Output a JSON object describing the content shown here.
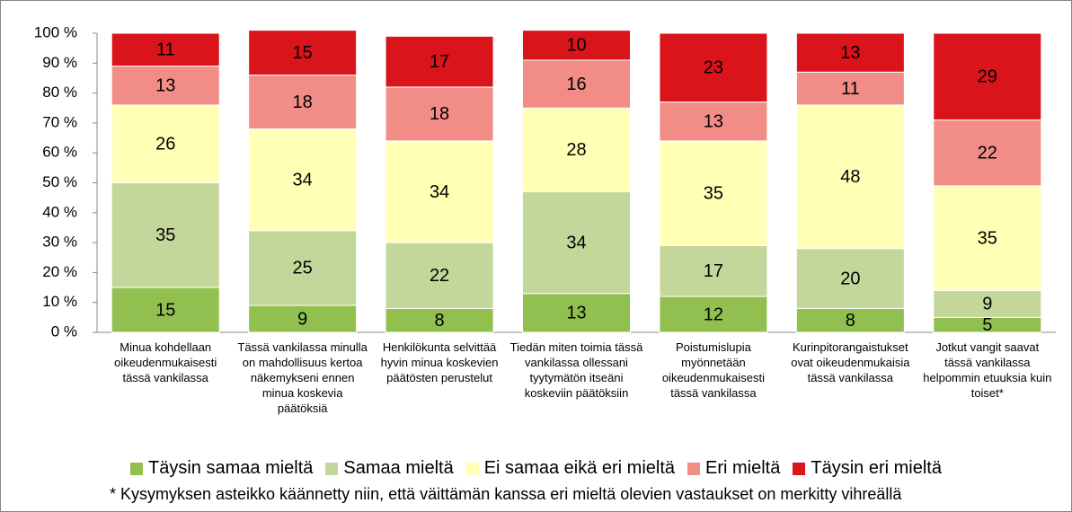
{
  "chart_data": {
    "type": "stacked_bar",
    "categories": [
      "Minua kohdellaan oikeudenmukaisesti tässä vankilassa",
      "Tässä vankilassa minulla on mahdollisuus kertoa näkemykseni ennen minua koskevia päätöksiä",
      "Henkilökunta selvittää hyvin minua koskevien päätösten perustelut",
      "Tiedän miten toimia tässä vankilassa ollessani tyytymätön itseäni koskeviin päätöksiin",
      "Poistumislupia myönnetään oikeudenmukaisesti tässä vankilassa",
      "Kurinpitorangaistukset ovat oikeudenmukaisia tässä vankilassa",
      "Jotkut vangit saavat tässä vankilassa helpommin etuuksia kuin toiset*"
    ],
    "series": [
      {
        "name": "Täysin samaa mieltä",
        "color": "#92c050",
        "values": [
          15,
          9,
          8,
          13,
          12,
          8,
          5
        ]
      },
      {
        "name": "Samaa mieltä",
        "color": "#c4d79b",
        "values": [
          35,
          25,
          22,
          34,
          17,
          20,
          9
        ]
      },
      {
        "name": "Ei samaa eikä eri mieltä",
        "color": "#ffffb5",
        "values": [
          26,
          34,
          34,
          28,
          35,
          48,
          35
        ]
      },
      {
        "name": "Eri mieltä",
        "color": "#f28c87",
        "values": [
          13,
          18,
          18,
          16,
          13,
          11,
          22
        ]
      },
      {
        "name": "Täysin eri mieltä",
        "color": "#d9141b",
        "values": [
          11,
          15,
          17,
          10,
          23,
          13,
          29
        ]
      }
    ],
    "ylim": [
      0,
      100
    ],
    "yticks": [
      {
        "value": 0,
        "label": "0 %"
      },
      {
        "value": 10,
        "label": "10 %"
      },
      {
        "value": 20,
        "label": "20 %"
      },
      {
        "value": 30,
        "label": "30 %"
      },
      {
        "value": 40,
        "label": "40 %"
      },
      {
        "value": 50,
        "label": "50 %"
      },
      {
        "value": 60,
        "label": "60 %"
      },
      {
        "value": 70,
        "label": "70 %"
      },
      {
        "value": 80,
        "label": "80 %"
      },
      {
        "value": 90,
        "label": "90 %"
      },
      {
        "value": 100,
        "label": "100 %"
      }
    ],
    "legend": "bottom",
    "note": "* Kysymyksen asteikko käännetty niin, että väittämän kanssa eri mieltä olevien vastaukset on merkitty  vihreällä"
  }
}
